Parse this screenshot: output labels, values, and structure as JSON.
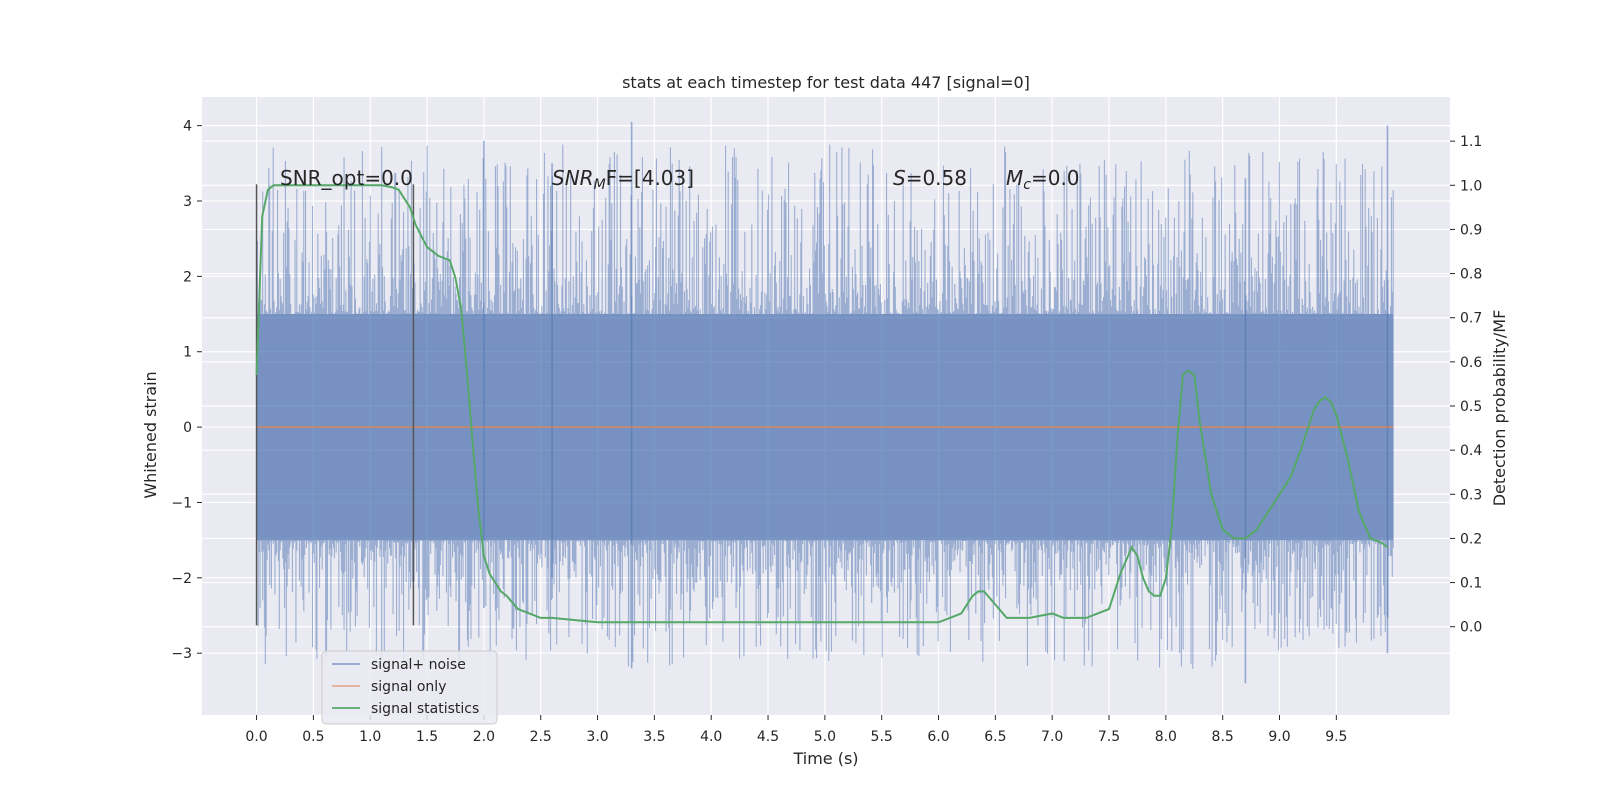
{
  "chart_data": {
    "type": "line",
    "title": "stats at each timestep for test data 447 [signal=0]",
    "xlabel": "Time (s)",
    "ylabel": "Whitened strain",
    "ylabel_right": "Detection probability/MF",
    "xlim": [
      -0.48,
      10.5
    ],
    "ylim": [
      -3.82,
      4.38
    ],
    "ylim_right": [
      -0.2,
      1.2
    ],
    "x_ticks": [
      "0.0",
      "0.5",
      "1.0",
      "1.5",
      "2.0",
      "2.5",
      "3.0",
      "3.5",
      "4.0",
      "4.5",
      "5.0",
      "5.5",
      "6.0",
      "6.5",
      "7.0",
      "7.5",
      "8.0",
      "8.5",
      "9.0",
      "9.5"
    ],
    "y_ticks": [
      "−3",
      "−2",
      "−1",
      "0",
      "1",
      "2",
      "3",
      "4"
    ],
    "y_ticks_right": [
      "0.0",
      "0.1",
      "0.2",
      "0.3",
      "0.4",
      "0.5",
      "0.6",
      "0.7",
      "0.8",
      "0.9",
      "1.0",
      "1.1"
    ],
    "grid": true,
    "legend_placement": "lower-left",
    "colors": {
      "background": "#eaeaf2",
      "noise": "#4c72b0",
      "signal": "#dd8452",
      "stats": "#55a868",
      "marker": "#555555"
    },
    "annotations": [
      {
        "text": "SNR_opt=0.0",
        "x": 0.2,
        "y": 3.3
      },
      {
        "text": "SNR_MF=[4.03]",
        "x": 2.6,
        "y": 3.3
      },
      {
        "text": "S=0.58",
        "x": 5.6,
        "y": 3.3
      },
      {
        "text": "M_c=0.0",
        "x": 6.6,
        "y": 3.3
      }
    ],
    "annotation_display": {
      "snr_opt": "SNR_opt=0.0",
      "snr_mf_sym": "SNR",
      "snr_mf_sub": "M",
      "snr_mf_rest": "F=[4.03]",
      "s_sym": "S",
      "s_rest": "=0.58",
      "mc_sym": "M",
      "mc_sub": "c",
      "mc_rest": "=0.0"
    },
    "markers": [
      {
        "x": 0.0,
        "y_range": [
          -2.63,
          3.22
        ]
      },
      {
        "x": 1.38,
        "y_range": [
          -2.63,
          3.22
        ]
      }
    ],
    "series": [
      {
        "name": "signal+ noise",
        "kind": "noise",
        "x_range": [
          0,
          10.0
        ],
        "band": [
          -1.5,
          1.5
        ],
        "peak_max": 4.0,
        "trough_min": -3.4
      },
      {
        "name": "signal only",
        "kind": "line",
        "x": [
          0,
          10.0
        ],
        "y": [
          0,
          0
        ]
      },
      {
        "name": "signal statistics",
        "kind": "line",
        "axis": "right",
        "x": [
          0.0,
          0.05,
          0.1,
          0.15,
          0.2,
          0.3,
          0.5,
          0.8,
          1.0,
          1.1,
          1.2,
          1.25,
          1.3,
          1.35,
          1.4,
          1.5,
          1.6,
          1.7,
          1.75,
          1.8,
          1.85,
          1.9,
          1.95,
          2.0,
          2.05,
          2.1,
          2.15,
          2.2,
          2.3,
          2.4,
          2.5,
          2.6,
          3.0,
          3.5,
          3.8,
          4.0,
          4.2,
          4.5,
          5.0,
          5.5,
          6.0,
          6.1,
          6.2,
          6.3,
          6.35,
          6.4,
          6.5,
          6.6,
          6.8,
          7.0,
          7.1,
          7.3,
          7.4,
          7.5,
          7.6,
          7.7,
          7.75,
          7.8,
          7.85,
          7.9,
          7.95,
          8.0,
          8.05,
          8.1,
          8.15,
          8.2,
          8.25,
          8.3,
          8.4,
          8.5,
          8.6,
          8.7,
          8.8,
          9.0,
          9.1,
          9.2,
          9.3,
          9.35,
          9.4,
          9.45,
          9.5,
          9.6,
          9.7,
          9.8,
          9.9,
          9.95
        ],
        "y": [
          0.57,
          0.93,
          0.99,
          1.0,
          1.0,
          1.0,
          1.0,
          1.0,
          1.0,
          1.0,
          0.995,
          0.99,
          0.97,
          0.95,
          0.91,
          0.86,
          0.84,
          0.83,
          0.79,
          0.72,
          0.58,
          0.42,
          0.27,
          0.16,
          0.12,
          0.1,
          0.08,
          0.07,
          0.04,
          0.03,
          0.02,
          0.02,
          0.01,
          0.01,
          0.01,
          0.01,
          0.01,
          0.01,
          0.01,
          0.01,
          0.01,
          0.02,
          0.03,
          0.07,
          0.08,
          0.08,
          0.05,
          0.02,
          0.02,
          0.03,
          0.02,
          0.02,
          0.03,
          0.04,
          0.12,
          0.18,
          0.16,
          0.11,
          0.08,
          0.07,
          0.07,
          0.11,
          0.22,
          0.42,
          0.57,
          0.58,
          0.57,
          0.46,
          0.3,
          0.22,
          0.2,
          0.2,
          0.22,
          0.3,
          0.34,
          0.41,
          0.49,
          0.51,
          0.52,
          0.51,
          0.48,
          0.38,
          0.26,
          0.2,
          0.19,
          0.18
        ]
      }
    ]
  }
}
